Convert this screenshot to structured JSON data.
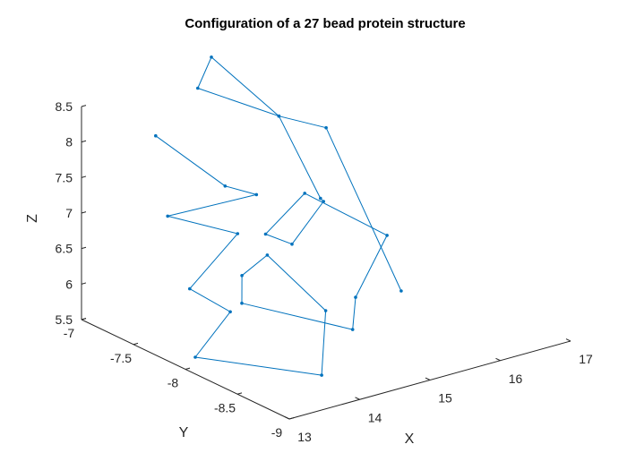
{
  "chart_data": {
    "type": "line3d",
    "title": "Configuration of a 27 bead protein structure",
    "xlabel": "X",
    "ylabel": "Y",
    "zlabel": "Z",
    "xlim": [
      13,
      17
    ],
    "ylim": [
      -9,
      -7
    ],
    "zlim": [
      5.5,
      8.5
    ],
    "x_ticks": [
      "13",
      "14",
      "15",
      "16",
      "17"
    ],
    "y_ticks": [
      "-7",
      "-7.5",
      "-8",
      "-8.5",
      "-9"
    ],
    "z_ticks": [
      "5.5",
      "6",
      "6.5",
      "7",
      "7.5",
      "8",
      "8.5"
    ],
    "series_color": "#0072BD",
    "axis_color": "#262626",
    "grid": false,
    "points": [
      {
        "x": 13.05,
        "y": -7.68,
        "z": 8.55
      },
      {
        "x": 14.2,
        "y": -7.57,
        "z": 7.45
      },
      {
        "x": 14.32,
        "y": -7.79,
        "z": 7.45
      },
      {
        "x": 13.25,
        "y": -7.66,
        "z": 7.35
      },
      {
        "x": 13.55,
        "y": -8.13,
        "z": 7.35
      },
      {
        "x": 13.15,
        "y": -7.94,
        "z": 6.55
      },
      {
        "x": 13.55,
        "y": -8.06,
        "z": 6.2
      },
      {
        "x": 13.45,
        "y": -7.79,
        "z": 5.4
      },
      {
        "x": 14.45,
        "y": -8.33,
        "z": 5.25
      },
      {
        "x": 14.7,
        "y": -8.2,
        "z": 6.0
      },
      {
        "x": 14.15,
        "y": -8.01,
        "z": 6.8
      },
      {
        "x": 14.07,
        "y": -7.82,
        "z": 6.4
      },
      {
        "x": 13.95,
        "y": -7.9,
        "z": 6.1
      },
      {
        "x": 14.92,
        "y": -8.31,
        "z": 5.75
      },
      {
        "x": 15.42,
        "y": -8.0,
        "z": 5.85
      },
      {
        "x": 16.0,
        "y": -7.91,
        "z": 6.5
      },
      {
        "x": 15.45,
        "y": -7.49,
        "z": 6.95
      },
      {
        "x": 14.85,
        "y": -7.52,
        "z": 6.56
      },
      {
        "x": 14.9,
        "y": -7.74,
        "z": 6.56
      },
      {
        "x": 15.6,
        "y": -7.57,
        "z": 6.85
      },
      {
        "x": 15.63,
        "y": -7.52,
        "z": 6.85
      },
      {
        "x": 15.32,
        "y": -7.33,
        "z": 7.96
      },
      {
        "x": 14.58,
        "y": -7.05,
        "z": 8.36
      },
      {
        "x": 14.7,
        "y": -7.1,
        "z": 8.8
      },
      {
        "x": 15.32,
        "y": -7.33,
        "z": 7.96
      },
      {
        "x": 15.74,
        "y": -7.5,
        "z": 7.8
      },
      {
        "x": 15.95,
        "y": -8.08,
        "z": 5.85
      }
    ]
  }
}
